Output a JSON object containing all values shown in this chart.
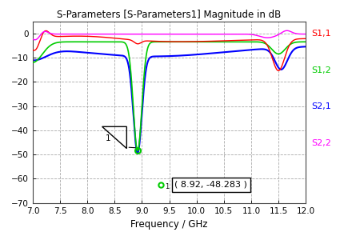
{
  "title": "S-Parameters [S-Parameters1] Magnitude in dB",
  "xlabel": "Frequency / GHz",
  "xlim": [
    7,
    12
  ],
  "ylim": [
    -70,
    5
  ],
  "yticks": [
    0,
    -10,
    -20,
    -30,
    -40,
    -50,
    -60,
    -70
  ],
  "xticks": [
    7,
    7.5,
    8,
    8.5,
    9,
    9.5,
    10,
    10.5,
    11,
    11.5,
    12
  ],
  "legend_labels": [
    "S1,1",
    "S1,2",
    "S2,1",
    "S2,2"
  ],
  "legend_colors": [
    "#ff0000",
    "#00cc00",
    "#0000ff",
    "#ff00ff"
  ],
  "bg_color": "#ffffff",
  "plot_bg_color": "#ffffff",
  "grid_color": "#aaaaaa",
  "marker_point": [
    8.92,
    -48.283
  ],
  "marker_label": "( 8.92, -48.283 )"
}
